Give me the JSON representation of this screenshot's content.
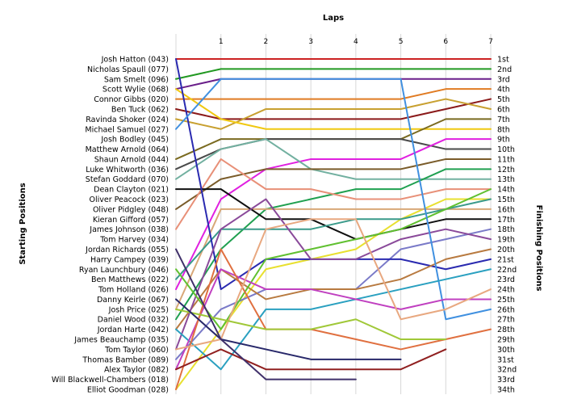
{
  "chart_data": {
    "type": "line",
    "title": "Laps",
    "ylabel_left": "Starting Positions",
    "ylabel_right": "Finishing Positions",
    "x_ticks": [
      "1",
      "2",
      "3",
      "4",
      "5",
      "6",
      "7"
    ],
    "xlim": [
      0,
      7
    ],
    "grid": true,
    "drivers": [
      "Josh Hatton (043)",
      "Nicholas Spaull (077)",
      "Sam Smelt (096)",
      "Scott Wylie (068)",
      "Connor Gibbs (020)",
      "Ben Tuck (062)",
      "Ravinda Shoker (024)",
      "Michael Samuel (027)",
      "Josh Bodley (045)",
      "Matthew Arnold (064)",
      "Shaun Arnold (044)",
      "Luke Whitworth (036)",
      "Stefan Goddard (070)",
      "Dean Clayton (021)",
      "Oliver Peacock (023)",
      "Oliver Pidgley (048)",
      "Kieran Gifford (057)",
      "James Johnson (038)",
      "Tom Harvey (034)",
      "Jordan Richards (055)",
      "Harry Campey (039)",
      "Ryan Launchbury (046)",
      "Ben Matthews (022)",
      "Tom Holland (026)",
      "Danny Keirle (067)",
      "Josh Price (025)",
      "Daniel Wood (032)",
      "Jordan Harte (042)",
      "James Beauchamp (035)",
      "Tom Taylor (060)",
      "Thomas Bamber (089)",
      "Alex Taylor (082)",
      "Will Blackwell-Chambers (018)",
      "Elliot Goodman (028)"
    ],
    "finishing_positions": [
      "1st",
      "2nd",
      "3rd",
      "4th",
      "5th",
      "6th",
      "7th",
      "8th",
      "9th",
      "10th",
      "11th",
      "12th",
      "13th",
      "14th",
      "15th",
      "16th",
      "17th",
      "18th",
      "19th",
      "20th",
      "21st",
      "22nd",
      "23rd",
      "24th",
      "25th",
      "26th",
      "27th",
      "28th",
      "29th",
      "30th",
      "31st",
      "32nd",
      "33rd",
      "34th"
    ],
    "series": [
      {
        "color": "#cc2222",
        "values": [
          1,
          1,
          1,
          1,
          1,
          1,
          1,
          1
        ]
      },
      {
        "color": "#229922",
        "values": [
          3,
          2,
          2,
          2,
          2,
          2,
          2,
          2
        ]
      },
      {
        "color": "#6a1f8a",
        "values": [
          4,
          3,
          3,
          3,
          3,
          3,
          3,
          3
        ]
      },
      {
        "color": "#e07b22",
        "values": [
          5,
          5,
          5,
          5,
          5,
          5,
          4,
          4
        ]
      },
      {
        "color": "#8b1a1a",
        "values": [
          6,
          7,
          7,
          7,
          7,
          7,
          6,
          5
        ]
      },
      {
        "color": "#c8a030",
        "values": [
          7,
          8,
          6,
          6,
          6,
          6,
          5,
          6
        ]
      },
      {
        "color": "#f0c810",
        "values": [
          4,
          7,
          8,
          8,
          8,
          8,
          8,
          8
        ]
      },
      {
        "color": "#7a6a20",
        "values": [
          11,
          9,
          9,
          9,
          9,
          9,
          7,
          7
        ]
      },
      {
        "color": "#4a4a4a",
        "values": [
          12,
          10,
          9,
          9,
          9,
          9,
          10,
          10
        ]
      },
      {
        "color": "#e020e0",
        "values": [
          24,
          15,
          12,
          11,
          11,
          11,
          9,
          9
        ]
      },
      {
        "color": "#72b0a0",
        "values": [
          13,
          10,
          9,
          12,
          13,
          13,
          13,
          13
        ]
      },
      {
        "color": "#7a5c2a",
        "values": [
          16,
          13,
          12,
          12,
          12,
          12,
          11,
          11
        ]
      },
      {
        "color": "#20a050",
        "values": [
          27,
          20,
          16,
          15,
          14,
          14,
          12,
          12
        ]
      },
      {
        "color": "#e89078",
        "values": [
          18,
          11,
          14,
          14,
          15,
          15,
          14,
          14
        ]
      },
      {
        "color": "#e8e030",
        "values": [
          34,
          28,
          22,
          21,
          20,
          17,
          15,
          15
        ]
      },
      {
        "color": "#d8a878",
        "values": [
          26,
          16,
          16,
          16,
          16,
          16,
          16,
          16
        ]
      },
      {
        "color": "#101010",
        "values": [
          14,
          14,
          17,
          17,
          19,
          18,
          17,
          17
        ]
      },
      {
        "color": "#3a9a8a",
        "values": [
          23,
          18,
          18,
          18,
          17,
          17,
          16,
          15
        ]
      },
      {
        "color": "#7a7ac8",
        "values": [
          31,
          26,
          24,
          24,
          24,
          20,
          19,
          18
        ]
      },
      {
        "color": "#2a2ab0",
        "values": [
          1,
          24,
          21,
          21,
          21,
          21,
          22,
          21
        ]
      },
      {
        "color": "#b87a40",
        "values": [
          28,
          22,
          25,
          24,
          24,
          23,
          21,
          20
        ]
      },
      {
        "color": "#8a4a9a",
        "values": [
          30,
          18,
          15,
          21,
          21,
          19,
          18,
          19
        ]
      },
      {
        "color": "#60c030",
        "values": [
          22,
          28,
          21,
          20,
          19,
          18,
          16,
          14
        ]
      },
      {
        "color": "#4090e0",
        "values": [
          8,
          3,
          3,
          3,
          3,
          3,
          27,
          26
        ]
      },
      {
        "color": "#2aa0c0",
        "values": [
          28,
          32,
          26,
          26,
          25,
          24,
          23,
          22
        ]
      },
      {
        "color": "#c040c0",
        "values": [
          32,
          22,
          24,
          24,
          25,
          26,
          25,
          25
        ]
      },
      {
        "color": "#e07040",
        "values": [
          34,
          20,
          28,
          28,
          29,
          30,
          29,
          28
        ]
      },
      {
        "color": "#e8a880",
        "values": [
          30,
          29,
          18,
          17,
          17,
          27,
          26,
          24
        ]
      },
      {
        "color": "#a0c838",
        "values": [
          26,
          27,
          28,
          28,
          27,
          29,
          29
        ]
      },
      {
        "color": "#28286a",
        "values": [
          25,
          29,
          30,
          31,
          31,
          31
        ]
      },
      {
        "color": "#902020",
        "values": [
          32,
          30,
          32,
          32,
          32,
          32,
          30
        ]
      },
      {
        "color": "#40306a",
        "values": [
          20,
          29,
          33,
          33,
          33
        ]
      }
    ]
  }
}
